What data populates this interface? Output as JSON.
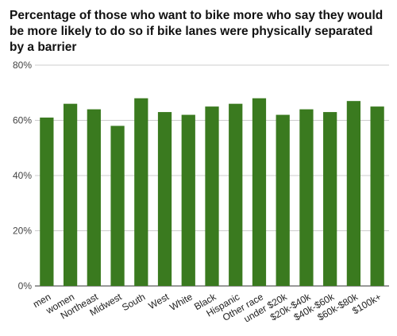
{
  "chart_data": {
    "type": "bar",
    "title": "Percentage of those who want to bike more who say they would be more likely to do so if bike lanes were physically separated by a barrier",
    "categories": [
      "men",
      "women",
      "Northeast",
      "Midwest",
      "South",
      "West",
      "White",
      "Black",
      "Hispanic",
      "Other race",
      "under $20k",
      "$20k-$40k",
      "$40k-$60k",
      "$60k-$80k",
      "$100k+"
    ],
    "values": [
      61,
      66,
      64,
      58,
      68,
      63,
      62,
      65,
      66,
      68,
      62,
      64,
      63,
      67,
      65
    ],
    "yticks": [
      "0%",
      "20%",
      "40%",
      "60%",
      "80%"
    ],
    "ylim": [
      0,
      80
    ],
    "grid": true,
    "legend": "none",
    "bar_color": "#3a7a1f",
    "grid_color": "#cccccc"
  }
}
